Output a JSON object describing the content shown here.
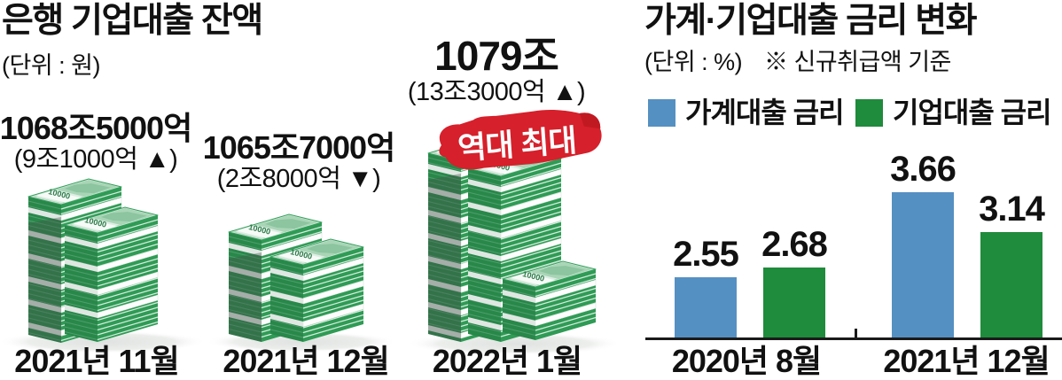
{
  "left": {
    "title": "은행 기업대출 잔액",
    "unit": "(단위 : 원)",
    "badge": "역대 최대",
    "groups": [
      {
        "value": "1068조5000억",
        "change": "(9조1000억 ▲)",
        "label": "2021년 11월"
      },
      {
        "value": "1065조7000억",
        "change": "(2조8000억 ▼)",
        "label": "2021년 12월"
      },
      {
        "value": "1079조",
        "change": "(13조3000억 ▲)",
        "label": "2022년 1월"
      }
    ]
  },
  "right": {
    "title": "가계·기업대출 금리 변화",
    "unit": "(단위 : %)",
    "note": "※ 신규취급액 기준",
    "legend": [
      {
        "label": "가계대출 금리",
        "color": "#5590c2"
      },
      {
        "label": "기업대출 금리",
        "color": "#1f8b3c"
      }
    ]
  },
  "colors": {
    "household_blue": "#5590c2",
    "corporate_green": "#1f8b3c",
    "badge_red": "#d6202b",
    "axis": "#1a1a1a",
    "bill_front": "#2f9b55",
    "bill_side_dark": "#28884a",
    "bill_top": "#dceee3"
  },
  "chart_data": [
    {
      "type": "pictogram",
      "title": "은행 기업대출 잔액",
      "unit": "원",
      "categories": [
        "2021년 11월",
        "2021년 12월",
        "2022년 1월"
      ],
      "values": [
        "1068조5000억",
        "1065조7000억",
        "1079조"
      ],
      "changes": [
        "9조1000억 ▲",
        "2조8000억 ▼",
        "13조3000억 ▲"
      ],
      "annotation": "역대 최대",
      "annotation_target": "2022년 1월"
    },
    {
      "type": "bar",
      "title": "가계·기업대출 금리 변화",
      "unit": "%",
      "note": "신규취급액 기준",
      "categories": [
        "2020년 8월",
        "2021년 12월"
      ],
      "series": [
        {
          "name": "가계대출 금리",
          "color": "#5590c2",
          "values": [
            2.55,
            3.66
          ]
        },
        {
          "name": "기업대출 금리",
          "color": "#1f8b3c",
          "values": [
            2.68,
            3.14
          ]
        }
      ],
      "ylim": [
        1.75,
        4.05
      ],
      "grid": false,
      "legend_position": "top"
    }
  ]
}
